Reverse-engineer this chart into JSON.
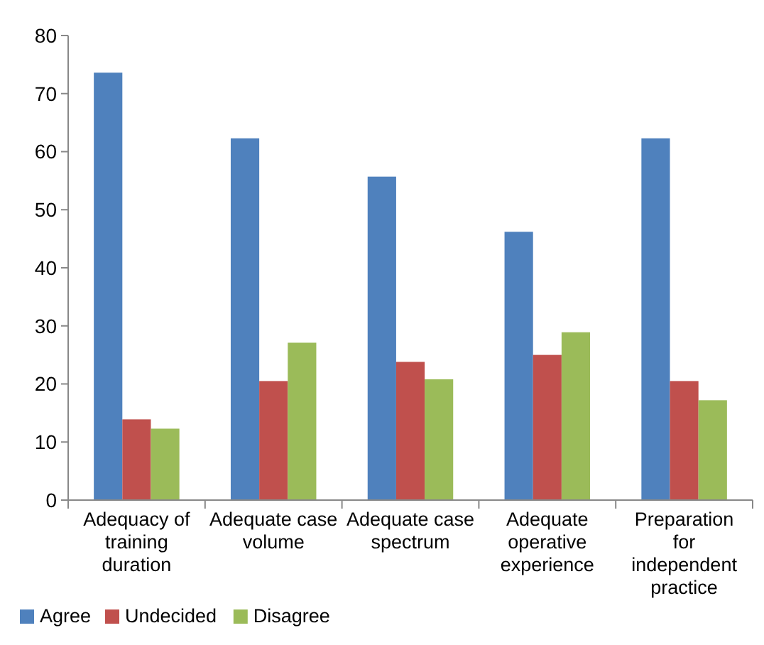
{
  "chart_data": {
    "type": "bar",
    "categories": [
      "Adequacy of training duration",
      "Adequate case volume",
      "Adequate case spectrum",
      "Adequate operative experience",
      "Preparation for independent practice"
    ],
    "series": [
      {
        "name": "Agree",
        "color": "#4f81bd",
        "values": [
          73.6,
          62.3,
          55.7,
          46.2,
          62.3
        ]
      },
      {
        "name": "Undecided",
        "color": "#c0504d",
        "values": [
          13.9,
          20.5,
          23.8,
          25,
          20.5
        ]
      },
      {
        "name": "Disagree",
        "color": "#9bbb59",
        "values": [
          12.3,
          27.1,
          20.8,
          28.9,
          17.2
        ]
      }
    ],
    "ylim": [
      0,
      80
    ],
    "yticks": [
      0,
      10,
      20,
      30,
      40,
      50,
      60,
      70,
      80
    ],
    "grid": false,
    "legend": "bottom left"
  }
}
